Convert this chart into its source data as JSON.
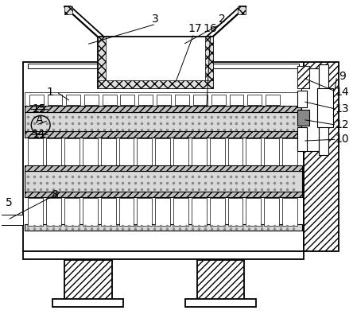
{
  "background_color": "#ffffff",
  "line_color": "#000000",
  "figsize": [
    4.44,
    4.05
  ],
  "dpi": 100,
  "label_fontsize": 10
}
